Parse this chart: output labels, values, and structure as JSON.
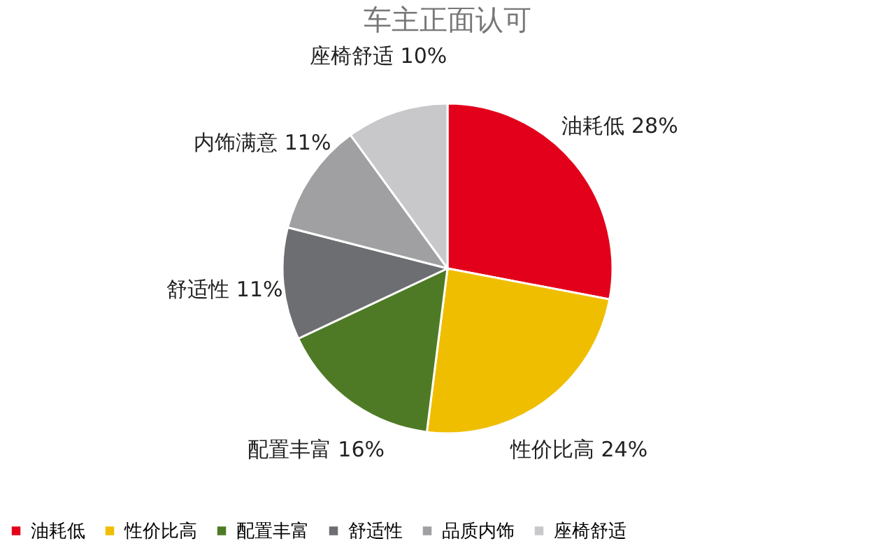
{
  "chart_data": {
    "type": "pie",
    "title": "车主正面认可",
    "categories": [
      "油耗低",
      "性价比高",
      "配置丰富",
      "舒适性",
      "品质内饰",
      "座椅舒适"
    ],
    "values": [
      28,
      24,
      16,
      11,
      11,
      10
    ],
    "colors": [
      "#e3001b",
      "#f0be00",
      "#4e7a25",
      "#6d6e71",
      "#a0a0a3",
      "#c8c8ca"
    ],
    "value_labels": [
      "油耗低 28%",
      "性价比高 24%",
      "配置丰富 16%",
      "舒适性 11%",
      "内饰满意 11%",
      "座椅舒适 10%"
    ],
    "legend": "bottom"
  }
}
